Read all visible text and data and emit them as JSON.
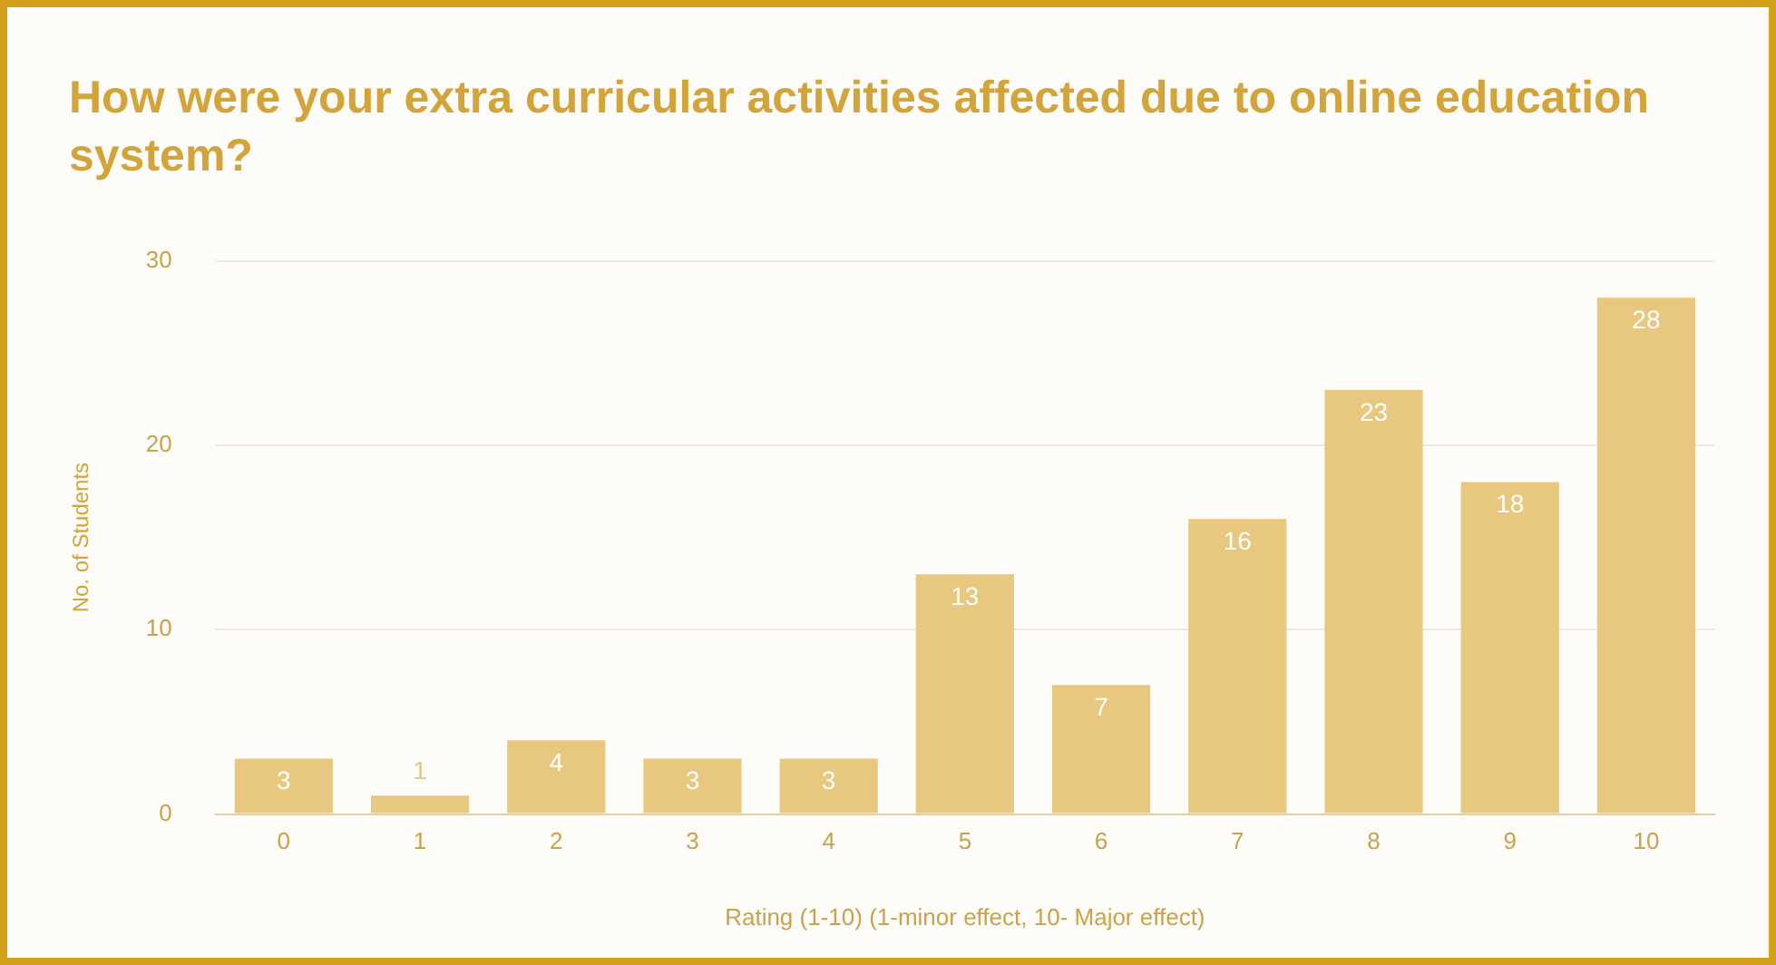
{
  "chart_data": {
    "type": "bar",
    "title": "How were your extra curricular activities affected due to online education system?",
    "xlabel": "Rating (1-10) (1-minor effect, 10- Major effect)",
    "ylabel": "No. of Students",
    "categories": [
      "0",
      "1",
      "2",
      "3",
      "4",
      "5",
      "6",
      "7",
      "8",
      "9",
      "10"
    ],
    "values": [
      3,
      1,
      4,
      3,
      3,
      13,
      7,
      16,
      23,
      18,
      28
    ],
    "color": "#e8c77f",
    "ylim": [
      0,
      30
    ],
    "yticks": [
      0,
      10,
      20,
      30
    ],
    "grid": "y",
    "data_labels": true
  }
}
